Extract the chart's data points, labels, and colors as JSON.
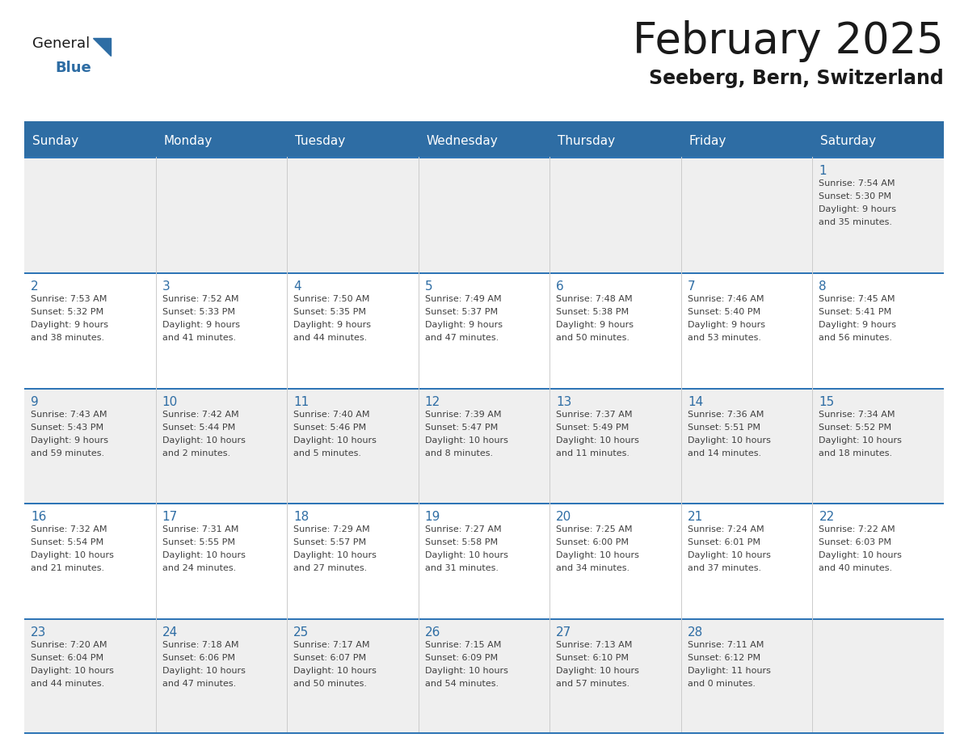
{
  "title": "February 2025",
  "subtitle": "Seeberg, Bern, Switzerland",
  "header_bg": "#2E6DA4",
  "header_text_color": "#FFFFFF",
  "day_names": [
    "Sunday",
    "Monday",
    "Tuesday",
    "Wednesday",
    "Thursday",
    "Friday",
    "Saturday"
  ],
  "cell_bg_even": "#EFEFEF",
  "cell_bg_odd": "#FFFFFF",
  "cell_border_color": "#2E75B6",
  "day_num_color": "#2E6DA4",
  "info_color": "#404040",
  "logo_general_color": "#1a1a1a",
  "logo_blue_color": "#2E6DA4",
  "weeks": [
    [
      null,
      null,
      null,
      null,
      null,
      null,
      1
    ],
    [
      2,
      3,
      4,
      5,
      6,
      7,
      8
    ],
    [
      9,
      10,
      11,
      12,
      13,
      14,
      15
    ],
    [
      16,
      17,
      18,
      19,
      20,
      21,
      22
    ],
    [
      23,
      24,
      25,
      26,
      27,
      28,
      null
    ]
  ],
  "day_data": {
    "1": {
      "sunrise": "7:54 AM",
      "sunset": "5:30 PM",
      "daylight": "9 hours and 35 minutes."
    },
    "2": {
      "sunrise": "7:53 AM",
      "sunset": "5:32 PM",
      "daylight": "9 hours and 38 minutes."
    },
    "3": {
      "sunrise": "7:52 AM",
      "sunset": "5:33 PM",
      "daylight": "9 hours and 41 minutes."
    },
    "4": {
      "sunrise": "7:50 AM",
      "sunset": "5:35 PM",
      "daylight": "9 hours and 44 minutes."
    },
    "5": {
      "sunrise": "7:49 AM",
      "sunset": "5:37 PM",
      "daylight": "9 hours and 47 minutes."
    },
    "6": {
      "sunrise": "7:48 AM",
      "sunset": "5:38 PM",
      "daylight": "9 hours and 50 minutes."
    },
    "7": {
      "sunrise": "7:46 AM",
      "sunset": "5:40 PM",
      "daylight": "9 hours and 53 minutes."
    },
    "8": {
      "sunrise": "7:45 AM",
      "sunset": "5:41 PM",
      "daylight": "9 hours and 56 minutes."
    },
    "9": {
      "sunrise": "7:43 AM",
      "sunset": "5:43 PM",
      "daylight": "9 hours and 59 minutes."
    },
    "10": {
      "sunrise": "7:42 AM",
      "sunset": "5:44 PM",
      "daylight": "10 hours and 2 minutes."
    },
    "11": {
      "sunrise": "7:40 AM",
      "sunset": "5:46 PM",
      "daylight": "10 hours and 5 minutes."
    },
    "12": {
      "sunrise": "7:39 AM",
      "sunset": "5:47 PM",
      "daylight": "10 hours and 8 minutes."
    },
    "13": {
      "sunrise": "7:37 AM",
      "sunset": "5:49 PM",
      "daylight": "10 hours and 11 minutes."
    },
    "14": {
      "sunrise": "7:36 AM",
      "sunset": "5:51 PM",
      "daylight": "10 hours and 14 minutes."
    },
    "15": {
      "sunrise": "7:34 AM",
      "sunset": "5:52 PM",
      "daylight": "10 hours and 18 minutes."
    },
    "16": {
      "sunrise": "7:32 AM",
      "sunset": "5:54 PM",
      "daylight": "10 hours and 21 minutes."
    },
    "17": {
      "sunrise": "7:31 AM",
      "sunset": "5:55 PM",
      "daylight": "10 hours and 24 minutes."
    },
    "18": {
      "sunrise": "7:29 AM",
      "sunset": "5:57 PM",
      "daylight": "10 hours and 27 minutes."
    },
    "19": {
      "sunrise": "7:27 AM",
      "sunset": "5:58 PM",
      "daylight": "10 hours and 31 minutes."
    },
    "20": {
      "sunrise": "7:25 AM",
      "sunset": "6:00 PM",
      "daylight": "10 hours and 34 minutes."
    },
    "21": {
      "sunrise": "7:24 AM",
      "sunset": "6:01 PM",
      "daylight": "10 hours and 37 minutes."
    },
    "22": {
      "sunrise": "7:22 AM",
      "sunset": "6:03 PM",
      "daylight": "10 hours and 40 minutes."
    },
    "23": {
      "sunrise": "7:20 AM",
      "sunset": "6:04 PM",
      "daylight": "10 hours and 44 minutes."
    },
    "24": {
      "sunrise": "7:18 AM",
      "sunset": "6:06 PM",
      "daylight": "10 hours and 47 minutes."
    },
    "25": {
      "sunrise": "7:17 AM",
      "sunset": "6:07 PM",
      "daylight": "10 hours and 50 minutes."
    },
    "26": {
      "sunrise": "7:15 AM",
      "sunset": "6:09 PM",
      "daylight": "10 hours and 54 minutes."
    },
    "27": {
      "sunrise": "7:13 AM",
      "sunset": "6:10 PM",
      "daylight": "10 hours and 57 minutes."
    },
    "28": {
      "sunrise": "7:11 AM",
      "sunset": "6:12 PM",
      "daylight": "11 hours and 0 minutes."
    }
  }
}
